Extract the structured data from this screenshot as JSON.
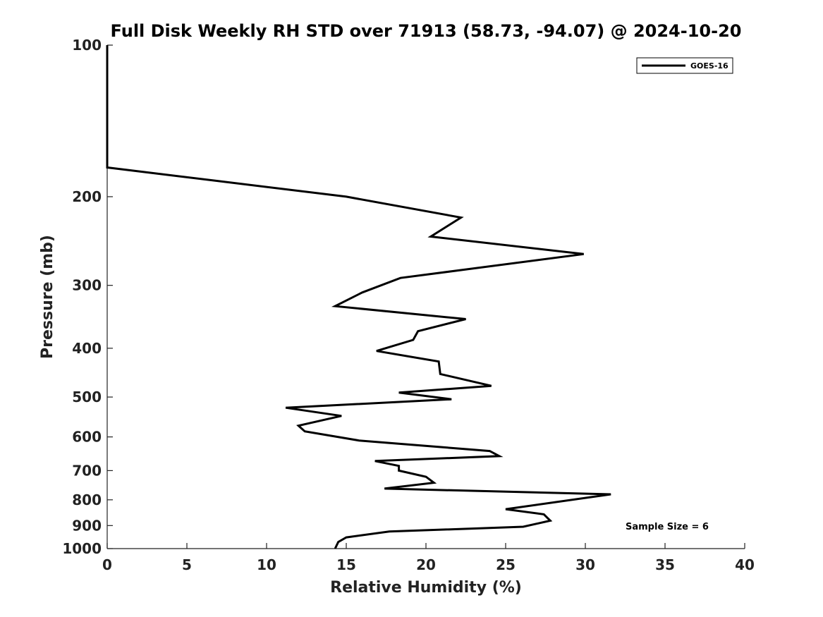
{
  "chart_data": {
    "type": "line",
    "title": "Full Disk Weekly RH STD over 71913 (58.73, -94.07) @ 2024-10-20",
    "xlabel": "Relative Humidity (%)",
    "ylabel": "Pressure (mb)",
    "xlim": [
      0,
      40
    ],
    "ylim": [
      100,
      1000
    ],
    "y_scale": "log",
    "y_reversed": true,
    "x_ticks": [
      0,
      5,
      10,
      15,
      20,
      25,
      30,
      35,
      40
    ],
    "y_ticks": [
      100,
      200,
      300,
      400,
      500,
      600,
      700,
      800,
      900,
      1000
    ],
    "legend_position": "top-right",
    "grid": false,
    "series": [
      {
        "name": "GOES-16",
        "color": "#000000",
        "x": [
          0.0,
          0.0,
          0.0,
          15.0,
          22.2,
          20.3,
          29.9,
          18.4,
          16.0,
          14.3,
          22.5,
          19.5,
          19.2,
          16.9,
          20.8,
          20.9,
          24.1,
          18.3,
          21.6,
          11.2,
          14.7,
          12.0,
          12.4,
          15.8,
          24.0,
          24.6,
          16.8,
          18.3,
          18.3,
          20.0,
          20.5,
          17.4,
          31.6,
          25.0,
          27.4,
          27.8,
          26.1,
          17.7,
          15.0,
          14.5,
          14.4,
          14.3
        ],
        "y": [
          100,
          150,
          175,
          200,
          220,
          240,
          260,
          290,
          310,
          330,
          350,
          370,
          385,
          405,
          425,
          450,
          475,
          490,
          505,
          525,
          545,
          570,
          585,
          610,
          640,
          655,
          670,
          685,
          700,
          720,
          740,
          760,
          780,
          835,
          855,
          880,
          905,
          925,
          950,
          970,
          985,
          1000
        ]
      }
    ],
    "annotations": [
      "Sample Size = 6"
    ]
  }
}
